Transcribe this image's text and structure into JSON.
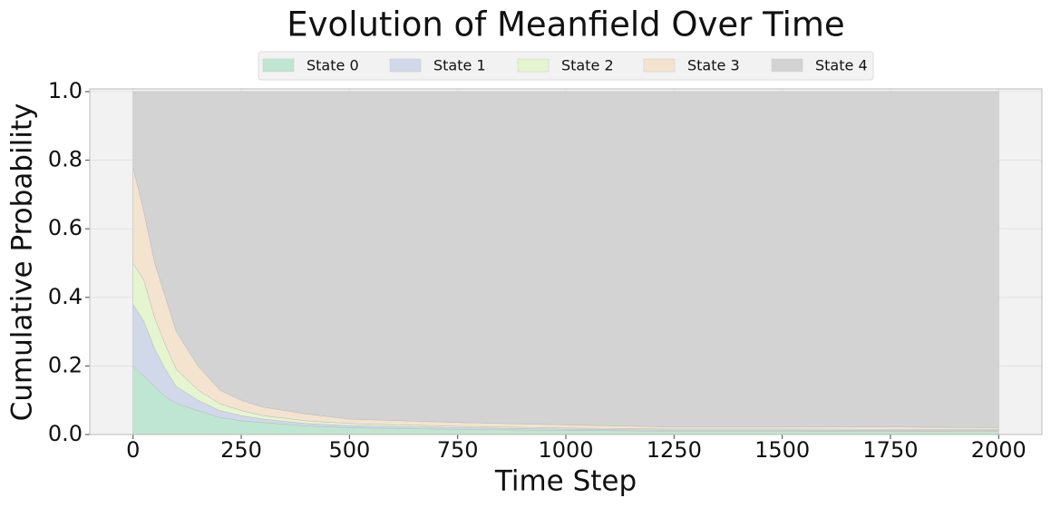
{
  "chart_data": {
    "type": "stacked_area",
    "title": "Evolution of Meanfield Over Time",
    "xlabel": "Time Step",
    "ylabel": "Cumulative Probability",
    "x": [
      0,
      25,
      50,
      75,
      100,
      150,
      200,
      250,
      300,
      400,
      500,
      750,
      1000,
      1250,
      1500,
      1750,
      2000
    ],
    "series": [
      {
        "name": "State 0",
        "color": "#bfe6d2",
        "values": [
          0.2,
          0.17,
          0.14,
          0.11,
          0.09,
          0.07,
          0.05,
          0.04,
          0.035,
          0.025,
          0.02,
          0.015,
          0.012,
          0.01,
          0.01,
          0.009,
          0.009
        ]
      },
      {
        "name": "State 1",
        "color": "#d0d8ea",
        "values": [
          0.18,
          0.16,
          0.11,
          0.08,
          0.05,
          0.03,
          0.02,
          0.015,
          0.01,
          0.007,
          0.006,
          0.005,
          0.004,
          0.003,
          0.003,
          0.003,
          0.003
        ]
      },
      {
        "name": "State 2",
        "color": "#e4f5d0",
        "values": [
          0.12,
          0.12,
          0.09,
          0.07,
          0.05,
          0.03,
          0.02,
          0.015,
          0.01,
          0.008,
          0.006,
          0.004,
          0.003,
          0.003,
          0.003,
          0.003,
          0.003
        ]
      },
      {
        "name": "State 3",
        "color": "#f3e3cf",
        "values": [
          0.28,
          0.2,
          0.16,
          0.14,
          0.11,
          0.07,
          0.04,
          0.03,
          0.025,
          0.02,
          0.013,
          0.011,
          0.009,
          0.006,
          0.006,
          0.007,
          0.005
        ]
      },
      {
        "name": "State 4",
        "color": "#d3d3d3",
        "values": [
          0.22,
          0.35,
          0.5,
          0.6,
          0.7,
          0.8,
          0.87,
          0.9,
          0.92,
          0.94,
          0.955,
          0.965,
          0.972,
          0.978,
          0.978,
          0.978,
          0.98
        ]
      }
    ],
    "xlim": [
      -100,
      2100
    ],
    "ylim": [
      0,
      1.008
    ],
    "xticks": [
      0,
      250,
      500,
      750,
      1000,
      1250,
      1500,
      1750,
      2000
    ],
    "yticks": [
      {
        "value": 0,
        "label": "0.0"
      },
      {
        "value": 0.2,
        "label": "0.2"
      },
      {
        "value": 0.4,
        "label": "0.4"
      },
      {
        "value": 0.6,
        "label": "0.6"
      },
      {
        "value": 0.8,
        "label": "0.8"
      },
      {
        "value": 1,
        "label": "1.0"
      }
    ],
    "grid": true,
    "legend": "top"
  }
}
